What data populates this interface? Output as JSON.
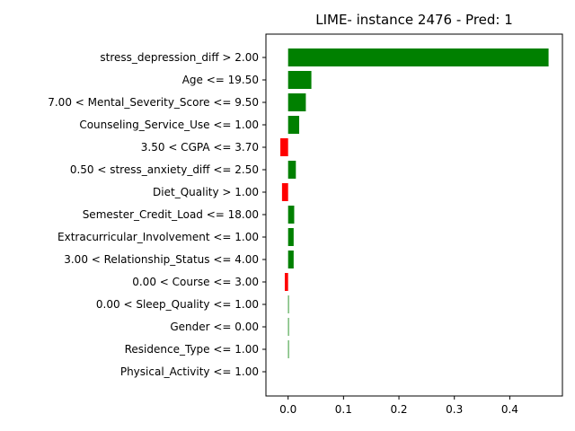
{
  "chart_data": {
    "type": "bar",
    "orientation": "horizontal",
    "title": "LIME- instance 2476 - Pred: 1",
    "xlabel": "",
    "ylabel": "",
    "xlim": [
      -0.04,
      0.495
    ],
    "xticks": [
      0.0,
      0.1,
      0.2,
      0.3,
      0.4
    ],
    "xtick_labels": [
      "0.0",
      "0.1",
      "0.2",
      "0.3",
      "0.4"
    ],
    "categories": [
      "stress_depression_diff > 2.00",
      "Age <= 19.50",
      "7.00 < Mental_Severity_Score <= 9.50",
      "Counseling_Service_Use <= 1.00",
      "3.50 < CGPA <= 3.70",
      "0.50 < stress_anxiety_diff <= 2.50",
      "Diet_Quality > 1.00",
      "Semester_Credit_Load <= 18.00",
      "Extracurricular_Involvement <= 1.00",
      "3.00 < Relationship_Status <= 4.00",
      "0.00 < Course <= 3.00",
      "0.00 < Sleep_Quality <= 1.00",
      "Gender <= 0.00",
      "Residence_Type <= 1.00",
      "Physical_Activity <= 1.00"
    ],
    "values": [
      0.47,
      0.042,
      0.032,
      0.02,
      -0.014,
      0.014,
      -0.011,
      0.011,
      0.01,
      0.01,
      -0.006,
      0.001,
      0.001,
      0.001,
      0.0
    ],
    "colors": {
      "positive": "#008000",
      "negative": "#ff0000"
    },
    "grid": false,
    "legend": "none"
  }
}
